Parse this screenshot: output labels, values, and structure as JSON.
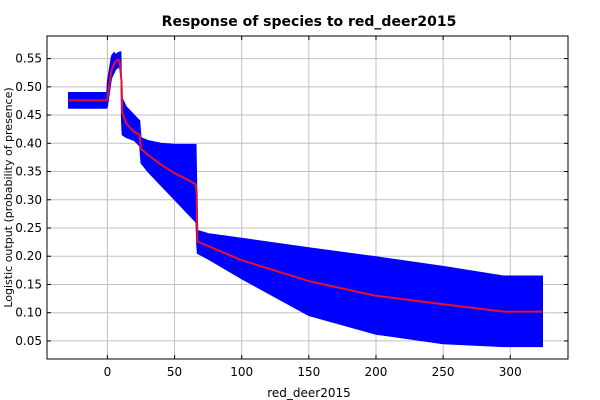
{
  "chart_data": {
    "type": "line",
    "title": "Response of species to red_deer2015",
    "xlabel": "red_deer2015",
    "ylabel": "Logistic output (probability of presence)",
    "xlim": [
      -45,
      343
    ],
    "ylim": [
      0.018,
      0.59
    ],
    "xticks": [
      0,
      50,
      100,
      150,
      200,
      250,
      300
    ],
    "yticks": [
      0.05,
      0.1,
      0.15,
      0.2,
      0.25,
      0.3,
      0.35,
      0.4,
      0.45,
      0.5,
      0.55
    ],
    "grid": true,
    "colors": {
      "mean": "#e8102b",
      "band": "#0000ff"
    },
    "series": [
      {
        "role": "mean",
        "x": [
          -29,
          -0.5,
          0,
          3,
          6,
          8,
          9,
          10.5,
          11,
          14,
          20,
          24,
          25,
          30,
          40,
          50,
          60,
          66,
          66.5,
          67,
          75,
          100,
          150,
          200,
          250,
          295,
          324
        ],
        "y": [
          0.476,
          0.476,
          0.48,
          0.53,
          0.545,
          0.548,
          0.545,
          0.51,
          0.455,
          0.435,
          0.42,
          0.415,
          0.39,
          0.38,
          0.362,
          0.347,
          0.335,
          0.327,
          0.31,
          0.226,
          0.218,
          0.193,
          0.156,
          0.13,
          0.115,
          0.102,
          0.102
        ]
      },
      {
        "role": "upper",
        "x": [
          -29,
          -0.5,
          0,
          3,
          5,
          6,
          8,
          10,
          10.5,
          11,
          14,
          20,
          24,
          25,
          30,
          40,
          50,
          60,
          66,
          66.5,
          67,
          75,
          100,
          150,
          200,
          250,
          295,
          324
        ],
        "y": [
          0.49,
          0.49,
          0.51,
          0.555,
          0.561,
          0.557,
          0.561,
          0.562,
          0.505,
          0.48,
          0.465,
          0.45,
          0.44,
          0.41,
          0.405,
          0.4,
          0.398,
          0.398,
          0.398,
          0.33,
          0.246,
          0.24,
          0.232,
          0.215,
          0.199,
          0.182,
          0.165,
          0.165
        ]
      },
      {
        "role": "lower",
        "x": [
          -29,
          -0.5,
          0,
          3,
          6,
          8,
          10,
          10.5,
          11,
          14,
          20,
          24,
          25,
          30,
          40,
          50,
          60,
          66,
          66.5,
          67,
          75,
          100,
          150,
          200,
          250,
          295,
          324
        ],
        "y": [
          0.462,
          0.462,
          0.465,
          0.515,
          0.53,
          0.535,
          0.53,
          0.44,
          0.415,
          0.41,
          0.405,
          0.395,
          0.365,
          0.35,
          0.325,
          0.3,
          0.275,
          0.26,
          0.22,
          0.205,
          0.195,
          0.16,
          0.095,
          0.062,
          0.045,
          0.04,
          0.04
        ]
      }
    ]
  }
}
